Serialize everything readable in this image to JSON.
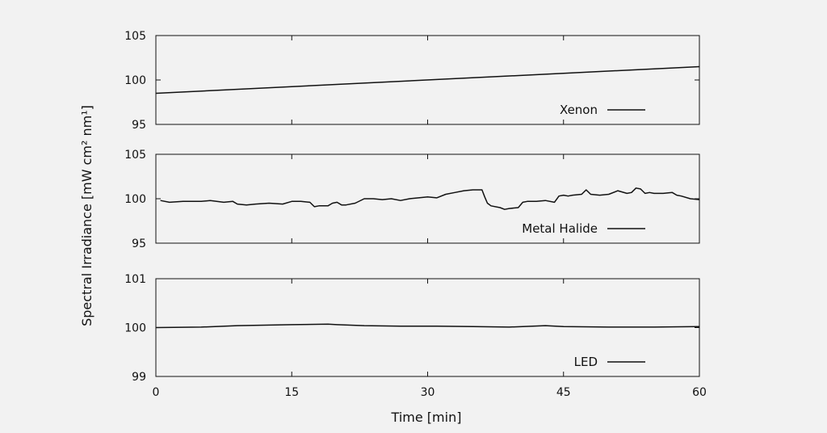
{
  "colors": {
    "background": "#f2f2f2",
    "axis": "#111111",
    "line": "#111111"
  },
  "chart_data": {
    "type": "line",
    "xlabel": "Time [min]",
    "ylabel": "Spectral Irradiance [mW cm² nm¹]",
    "xlim": [
      0,
      60
    ],
    "xticks": [
      0,
      15,
      30,
      45,
      60
    ],
    "grid": false,
    "shared_x": true,
    "panels": [
      {
        "ylim": [
          95,
          105
        ],
        "yticks": [
          95,
          100,
          105
        ],
        "legend_position": "bottom-right",
        "series": [
          {
            "name": "Xenon",
            "x": [
              0,
              60
            ],
            "y": [
              98.5,
              101.5
            ]
          }
        ]
      },
      {
        "ylim": [
          95,
          105
        ],
        "yticks": [
          95,
          100,
          105
        ],
        "legend_position": "bottom-right",
        "series": [
          {
            "name": "Metal Halide",
            "x": [
              0.5,
              1.5,
              3,
              5,
              6,
              7.5,
              8.5,
              9,
              10,
              11,
              12.5,
              14,
              15,
              16,
              17,
              17.5,
              18,
              19,
              19.5,
              20,
              20.5,
              21,
              22,
              23,
              24,
              25,
              26,
              27,
              28,
              29,
              30,
              31,
              32,
              33,
              34,
              35,
              36,
              36.3,
              36.6,
              37,
              38,
              38.5,
              39,
              40,
              40.5,
              41,
              42,
              43,
              44,
              44.5,
              45,
              45.5,
              46,
              47,
              47.5,
              48,
              49,
              50,
              51,
              52,
              52.5,
              53,
              53.5,
              54,
              54.5,
              55,
              56,
              57,
              57.5,
              58,
              59,
              60
            ],
            "y": [
              99.8,
              99.6,
              99.7,
              99.7,
              99.8,
              99.6,
              99.7,
              99.4,
              99.3,
              99.4,
              99.5,
              99.4,
              99.7,
              99.7,
              99.6,
              99.1,
              99.2,
              99.2,
              99.5,
              99.6,
              99.3,
              99.3,
              99.5,
              100.0,
              100.0,
              99.9,
              100.0,
              99.8,
              100.0,
              100.1,
              100.2,
              100.1,
              100.5,
              100.7,
              100.9,
              101.0,
              101.0,
              100.2,
              99.5,
              99.2,
              99.0,
              98.8,
              98.9,
              99.0,
              99.6,
              99.7,
              99.7,
              99.8,
              99.6,
              100.3,
              100.4,
              100.3,
              100.4,
              100.5,
              101.0,
              100.5,
              100.4,
              100.5,
              100.9,
              100.6,
              100.7,
              101.2,
              101.1,
              100.6,
              100.7,
              100.6,
              100.6,
              100.7,
              100.4,
              100.3,
              100.0,
              99.9
            ]
          }
        ]
      },
      {
        "ylim": [
          99,
          101
        ],
        "yticks": [
          99,
          100,
          101
        ],
        "legend_position": "bottom-right",
        "series": [
          {
            "name": "LED",
            "x": [
              0,
              5,
              9,
              12,
              15,
              19,
              20,
              23,
              27,
              31,
              35,
              39,
              43,
              45,
              50,
              55,
              60
            ],
            "y": [
              100.0,
              100.01,
              100.04,
              100.05,
              100.06,
              100.07,
              100.06,
              100.04,
              100.03,
              100.03,
              100.02,
              100.01,
              100.04,
              100.02,
              100.01,
              100.01,
              100.02
            ]
          }
        ]
      }
    ]
  }
}
